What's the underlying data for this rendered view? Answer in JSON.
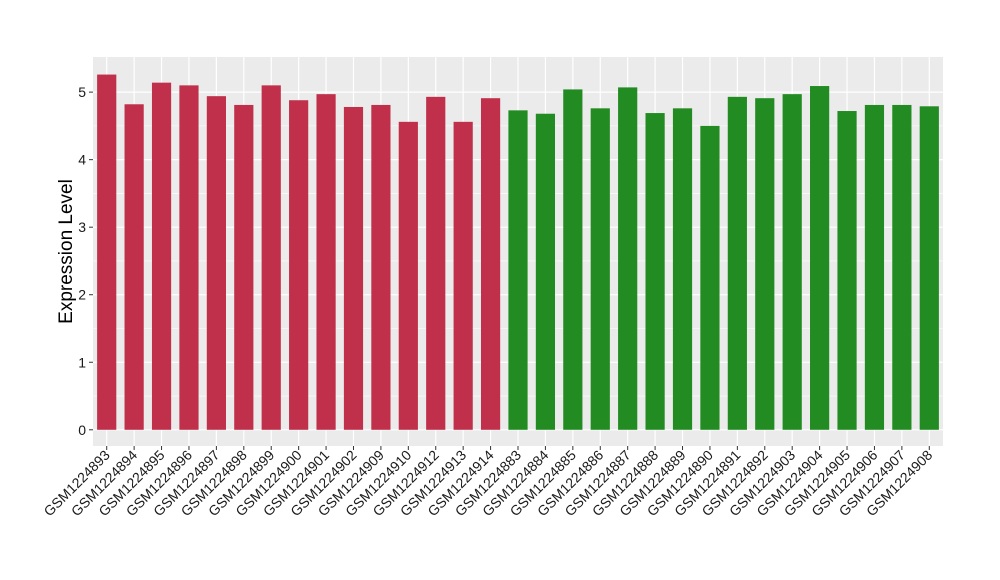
{
  "chart_data": {
    "type": "bar",
    "title": "",
    "xlabel": "",
    "ylabel": "Expression Level",
    "ylim": [
      -0.24,
      5.52
    ],
    "yticks": [
      0,
      1,
      2,
      3,
      4,
      5
    ],
    "grid": true,
    "legend": "none",
    "panel_background": "#ebebeb",
    "categories": [
      "GSM1224893",
      "GSM1224894",
      "GSM1224895",
      "GSM1224896",
      "GSM1224897",
      "GSM1224898",
      "GSM1224899",
      "GSM1224900",
      "GSM1224901",
      "GSM1224902",
      "GSM1224909",
      "GSM1224910",
      "GSM1224912",
      "GSM1224913",
      "GSM1224914",
      "GSM1224883",
      "GSM1224884",
      "GSM1224885",
      "GSM1224886",
      "GSM1224887",
      "GSM1224888",
      "GSM1224889",
      "GSM1224890",
      "GSM1224891",
      "GSM1224892",
      "GSM1224903",
      "GSM1224904",
      "GSM1224905",
      "GSM1224906",
      "GSM1224907",
      "GSM1224908"
    ],
    "values": [
      5.26,
      4.82,
      5.14,
      5.1,
      4.94,
      4.81,
      5.1,
      4.88,
      4.97,
      4.78,
      4.81,
      4.56,
      4.93,
      4.56,
      4.91,
      4.73,
      4.68,
      5.04,
      4.76,
      5.07,
      4.69,
      4.76,
      4.5,
      4.93,
      4.91,
      4.97,
      5.09,
      4.72,
      4.81,
      4.81,
      4.79
    ],
    "bar_colors": [
      "#c0304a",
      "#c0304a",
      "#c0304a",
      "#c0304a",
      "#c0304a",
      "#c0304a",
      "#c0304a",
      "#c0304a",
      "#c0304a",
      "#c0304a",
      "#c0304a",
      "#c0304a",
      "#c0304a",
      "#c0304a",
      "#c0304a",
      "#228b22",
      "#228b22",
      "#228b22",
      "#228b22",
      "#228b22",
      "#228b22",
      "#228b22",
      "#228b22",
      "#228b22",
      "#228b22",
      "#228b22",
      "#228b22",
      "#228b22",
      "#228b22",
      "#228b22",
      "#228b22"
    ]
  }
}
